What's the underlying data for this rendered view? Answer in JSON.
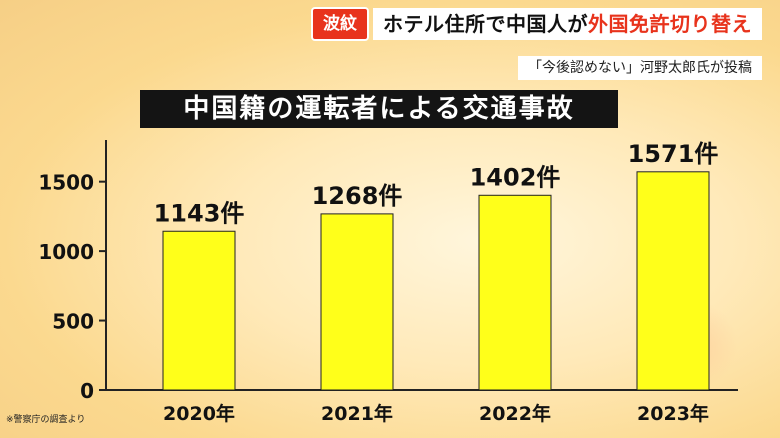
{
  "header": {
    "badge": "波紋",
    "headline_part1": "ホテル住所で中国人が",
    "headline_part2": "外国免許切り替え",
    "subhead": "「今後認めない」河野太郎氏が投稿"
  },
  "footnote": "※警察庁の調査より",
  "colors": {
    "bar": "#ffff1a",
    "bar_stroke": "#222222",
    "accent": "#e8331c",
    "title_bg": "#141414"
  },
  "chart_data": {
    "type": "bar",
    "title": "中国籍の運転者による交通事故",
    "categories": [
      "2020年",
      "2021年",
      "2022年",
      "2023年"
    ],
    "values": [
      1143,
      1268,
      1402,
      1571
    ],
    "data_labels": [
      "1143件",
      "1268件",
      "1402件",
      "1571件"
    ],
    "yticks": [
      "0",
      "500",
      "1000",
      "1500"
    ],
    "ytick_values": [
      0,
      500,
      1000,
      1500
    ],
    "ylim": [
      0,
      1800
    ],
    "grid": false,
    "legend": "none"
  }
}
